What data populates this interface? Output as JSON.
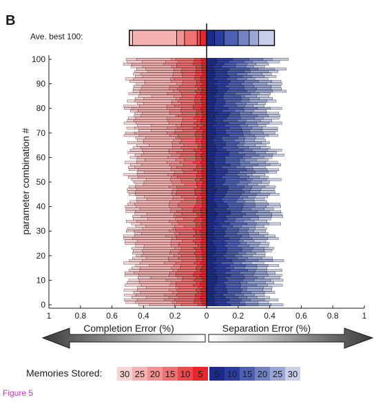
{
  "panel_label": "B",
  "figure_caption": "Figure 5",
  "chart_data": {
    "type": "bar",
    "orientation": "horizontal-diverging",
    "ylabel": "parameter combination #",
    "y_ticks": [
      0,
      10,
      20,
      30,
      40,
      50,
      60,
      70,
      80,
      90,
      100
    ],
    "x_ticks": [
      "1",
      "0.8",
      "0.6",
      "0.4",
      "0.2",
      "0",
      "0.2",
      "0.4",
      "0.6",
      "0.8",
      "1"
    ],
    "x_left_label": "Completion Error (%)",
    "x_right_label": "Separation Error (%)",
    "xlim_left": [
      0,
      1
    ],
    "xlim_right": [
      0,
      1
    ],
    "avg_row_label": "Ave. best 100:",
    "avg_completion": [
      0.04,
      0.06,
      0.14,
      0.19,
      0.47,
      0.49
    ],
    "avg_separation": [
      0.05,
      0.11,
      0.2,
      0.27,
      0.33,
      0.43
    ],
    "legend_title": "Memories Stored:",
    "memories": [
      5,
      10,
      15,
      20,
      25,
      30
    ],
    "legend_left_order": [
      "30",
      "25",
      "20",
      "15",
      "10",
      "5"
    ],
    "legend_right_order": [
      "5",
      "10",
      "15",
      "20",
      "25",
      "30"
    ],
    "colors": {
      "completion": [
        "#e8262c",
        "#ea4a4c",
        "#ee7272",
        "#f29292",
        "#f5b2b2",
        "#f9d4d4"
      ],
      "separation": [
        "#1c2a8c",
        "#2b3d9e",
        "#4d5fb0",
        "#7282c2",
        "#9aa6d3",
        "#c8cfe6"
      ],
      "arrow_dark": "#555555",
      "caption": "#cc33cc"
    },
    "completion_totals_range": [
      0.43,
      0.53
    ],
    "separation_totals_range": [
      0.36,
      0.52
    ]
  }
}
